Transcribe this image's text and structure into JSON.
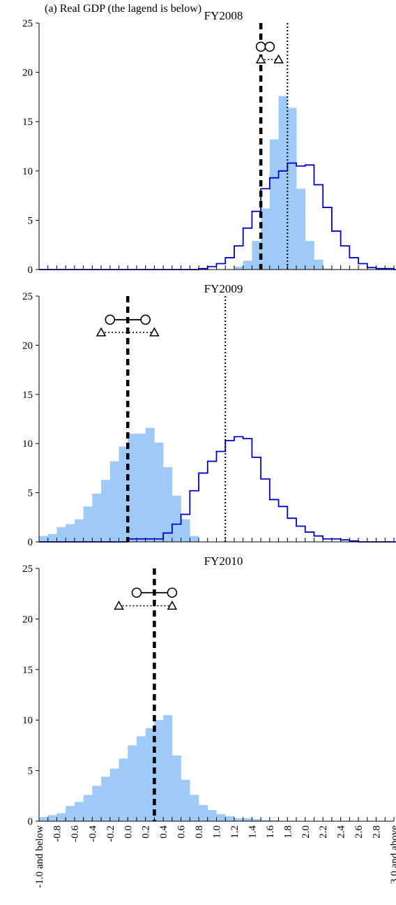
{
  "header_text": "(a) Real GDP (the lagend is below)",
  "colors": {
    "fill_histogram": "#9fcaf8",
    "step_line": "#0000cc",
    "median_line": "#000000",
    "axis": "#000000"
  },
  "x_tick_labels": [
    "-1.0 and below",
    "-0.8",
    "-0.6",
    "-0.4",
    "-0.2",
    "0.0",
    "0.2",
    "0.4",
    "0.6",
    "0.8",
    "1.0",
    "1.2",
    "1.4",
    "1.6",
    "1.8",
    "2.0",
    "2.2",
    "2.4",
    "2.6",
    "2.8",
    "3.0 and above"
  ],
  "chart_data": [
    {
      "type": "bar",
      "title": "FY2008",
      "ylim": [
        0,
        25
      ],
      "y_ticks": [
        0,
        5,
        10,
        15,
        20,
        25
      ],
      "bin_width": 0.1,
      "current_distribution": [
        0,
        0,
        0,
        0,
        0,
        0,
        0,
        0,
        0,
        0,
        0,
        0,
        0,
        0,
        0,
        0,
        0,
        0,
        0,
        0,
        0,
        0,
        0.3,
        0.9,
        2.9,
        6.2,
        13.2,
        17.6,
        16.4,
        8.2,
        2.9,
        1.0,
        0.1,
        0,
        0,
        0,
        0,
        0,
        0,
        0,
        0
      ],
      "previous_distribution": [
        0,
        0,
        0,
        0,
        0,
        0,
        0,
        0,
        0,
        0,
        0,
        0,
        0,
        0,
        0,
        0,
        0,
        0,
        0.1,
        0.3,
        0.6,
        1.2,
        2.4,
        4.2,
        5.9,
        8.2,
        9.3,
        10.0,
        10.8,
        10.5,
        10.6,
        8.6,
        6.3,
        3.9,
        2.4,
        1.2,
        0.6,
        0.2,
        0.1,
        0.1,
        0
      ],
      "median_current": 1.5,
      "median_previous": 1.8,
      "range_current": [
        1.5,
        1.6
      ],
      "range_previous": [
        1.5,
        1.7
      ]
    },
    {
      "type": "bar",
      "title": "FY2009",
      "ylim": [
        0,
        25
      ],
      "y_ticks": [
        0,
        5,
        10,
        15,
        20,
        25
      ],
      "bin_width": 0.1,
      "current_distribution": [
        0.6,
        0.8,
        1.5,
        1.8,
        2.3,
        3.6,
        4.9,
        6.3,
        8.2,
        9.7,
        11.0,
        11.0,
        11.6,
        10.1,
        7.6,
        4.7,
        2.3,
        0.6,
        0,
        0,
        0,
        0,
        0,
        0,
        0,
        0,
        0,
        0,
        0,
        0,
        0,
        0,
        0,
        0,
        0,
        0,
        0,
        0,
        0,
        0,
        0
      ],
      "previous_distribution": [
        0,
        0,
        0,
        0,
        0,
        0,
        0,
        0,
        0,
        0,
        0.3,
        0.3,
        0.3,
        0.3,
        0.9,
        1.8,
        2.8,
        5.2,
        7.0,
        8.2,
        9.2,
        10.3,
        10.7,
        10.5,
        8.6,
        6.4,
        4.3,
        3.6,
        2.4,
        1.6,
        1.0,
        0.6,
        0.3,
        0.3,
        0.2,
        0.1,
        0,
        0,
        0,
        0,
        0
      ],
      "median_current": 0.0,
      "median_previous": 1.1,
      "range_current": [
        -0.2,
        0.2
      ],
      "range_previous": [
        -0.3,
        0.3
      ]
    },
    {
      "type": "bar",
      "title": "FY2010",
      "ylim": [
        0,
        25
      ],
      "y_ticks": [
        0,
        5,
        10,
        15,
        20,
        25
      ],
      "bin_width": 0.1,
      "current_distribution": [
        0.4,
        0.6,
        0.8,
        1.5,
        1.9,
        2.6,
        3.5,
        4.4,
        5.2,
        6.2,
        7.5,
        8.4,
        9.2,
        10.0,
        10.5,
        6.5,
        4.1,
        2.6,
        1.6,
        1.1,
        0.7,
        0.5,
        0.3,
        0.3,
        0.2,
        0.1,
        0.1,
        0,
        0,
        0,
        0,
        0,
        0,
        0,
        0,
        0,
        0,
        0,
        0,
        0,
        0
      ],
      "median_current": 0.3,
      "range_current": [
        0.1,
        0.5
      ],
      "range_previous": [
        -0.1,
        0.5
      ]
    }
  ]
}
